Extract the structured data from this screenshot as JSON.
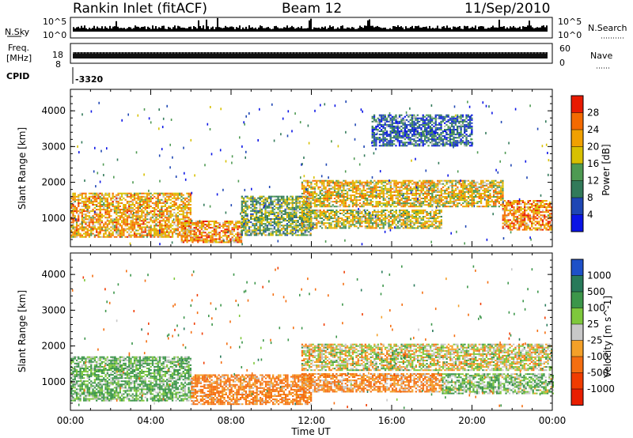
{
  "header": {
    "station": "Rankin Inlet (fitACF)",
    "beam": "Beam 12",
    "date": "11/Sep/2010"
  },
  "top_panels": {
    "nsky_label": "N.Sky",
    "nsky_ticks": [
      "10^5",
      "10^0"
    ],
    "nsearch_label": "N.Search",
    "freq_label_1": "Freq.",
    "freq_label_2": "[MHz]",
    "freq_ticks": [
      "18",
      "8"
    ],
    "nave_label": "Nave",
    "nave_ticks": [
      "60",
      "0"
    ],
    "cpid_label": "CPID",
    "cpid_value": "-3320"
  },
  "colors": {
    "power": [
      "#0a14e6",
      "#1e46b4",
      "#327a5a",
      "#4e9a52",
      "#d8c000",
      "#f0a000",
      "#f46a00",
      "#e81a00"
    ],
    "velocity": [
      "#1e50c8",
      "#287a5a",
      "#3c964a",
      "#7ec83c",
      "#c8c8c8",
      "#f4a028",
      "#f46e10",
      "#f03c00",
      "#e81e00"
    ],
    "ground": "#bebebe"
  },
  "chart_data": [
    {
      "type": "heatmap",
      "panel": "power",
      "ylabel": "Slant Range [km]",
      "xlabel": "Time UT",
      "x_ticks": [
        "00:00",
        "04:00",
        "08:00",
        "12:00",
        "16:00",
        "20:00",
        "00:00"
      ],
      "xlim": [
        0,
        24
      ],
      "y_ticks": [
        1000,
        2000,
        3000,
        4000
      ],
      "ylim": [
        200,
        4600
      ],
      "colorbar_label": "Power [dB]",
      "colorbar_ticks": [
        4,
        8,
        12,
        16,
        20,
        24,
        28
      ],
      "regions": [
        {
          "t0": 0.0,
          "t1": 6.0,
          "r0": 450,
          "r1": 1700,
          "value": 24
        },
        {
          "t0": 5.5,
          "t1": 8.5,
          "r0": 300,
          "r1": 900,
          "value": 26
        },
        {
          "t0": 8.5,
          "t1": 12.0,
          "r0": 500,
          "r1": 1600,
          "value": 16
        },
        {
          "t0": 11.5,
          "t1": 21.5,
          "r0": 1300,
          "r1": 2050,
          "value": 22
        },
        {
          "t0": 11.5,
          "t1": 18.5,
          "r0": 700,
          "r1": 1200,
          "value": 20
        },
        {
          "t0": 21.5,
          "t1": 24.0,
          "r0": 650,
          "r1": 1500,
          "value": 26
        },
        {
          "t0": 15.0,
          "t1": 20.0,
          "r0": 3000,
          "r1": 3900,
          "value": 10
        }
      ]
    },
    {
      "type": "heatmap",
      "panel": "velocity",
      "ylabel": "Slant Range [km]",
      "xlabel": "Time UT",
      "x_ticks": [
        "00:00",
        "04:00",
        "08:00",
        "12:00",
        "16:00",
        "20:00",
        "00:00"
      ],
      "xlim": [
        0,
        24
      ],
      "y_ticks": [
        1000,
        2000,
        3000,
        4000
      ],
      "ylim": [
        200,
        4600
      ],
      "colorbar_label": "Velocity [m s^-1]",
      "colorbar_ticks": [
        "1000",
        "500",
        "100",
        "25",
        "-25",
        "-100",
        "-500",
        "-1000"
      ],
      "regions": [
        {
          "t0": 0.0,
          "t1": 6.0,
          "r0": 450,
          "r1": 1700,
          "value": 120
        },
        {
          "t0": 6.0,
          "t1": 12.0,
          "r0": 350,
          "r1": 1200,
          "value": -150
        },
        {
          "t0": 11.5,
          "t1": 24.0,
          "r0": 1300,
          "r1": 2050,
          "value": 0
        },
        {
          "t0": 11.5,
          "t1": 18.5,
          "r0": 700,
          "r1": 1200,
          "value": -120
        },
        {
          "t0": 18.5,
          "t1": 24.0,
          "r0": 650,
          "r1": 1200,
          "value": 80
        }
      ]
    }
  ]
}
